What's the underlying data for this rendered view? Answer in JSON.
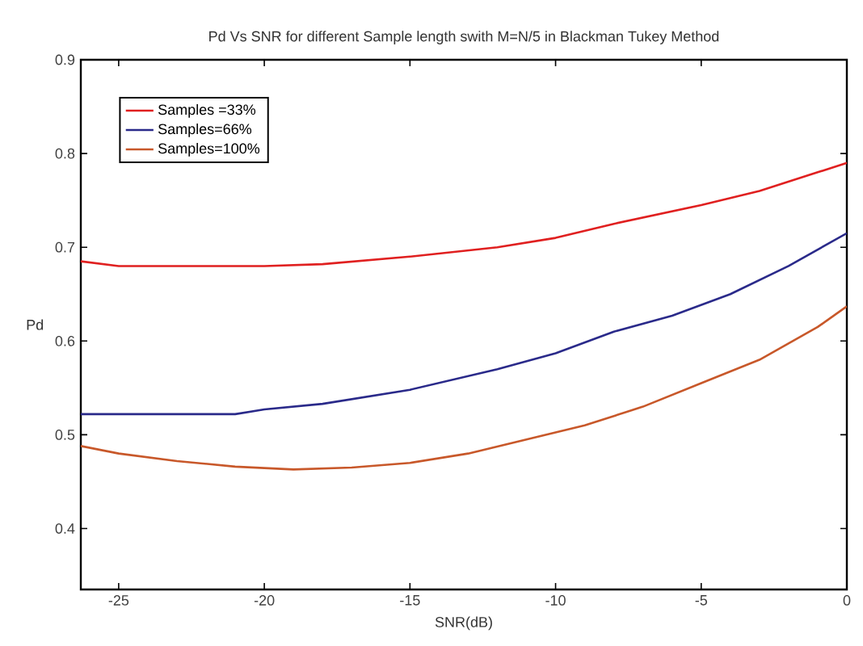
{
  "chart_data": {
    "type": "line",
    "title": "Pd Vs SNR for different Sample length swith M=N/5 in Blackman Tukey Method",
    "xlabel": "SNR(dB)",
    "ylabel": "Pd",
    "xlim": [
      -26.3,
      0
    ],
    "ylim": [
      0.335,
      0.9
    ],
    "xticks": [
      -25,
      -20,
      -15,
      -10,
      -5,
      0
    ],
    "yticks": [
      0.4,
      0.5,
      0.6,
      0.7,
      0.8,
      0.9
    ],
    "legend": "top left",
    "grid": false,
    "line_style": "solid",
    "marker": "none",
    "series": [
      {
        "name": "Samples =33%",
        "color": "#e02020",
        "x": [
          -26.3,
          -25,
          -20,
          -18,
          -15,
          -12,
          -10,
          -8,
          -5,
          -3,
          -1,
          0
        ],
        "values": [
          0.685,
          0.68,
          0.68,
          0.682,
          0.69,
          0.7,
          0.71,
          0.725,
          0.745,
          0.76,
          0.78,
          0.79
        ]
      },
      {
        "name": "Samples=66%",
        "color": "#2a2a8a",
        "x": [
          -26.3,
          -21,
          -20,
          -18,
          -15,
          -12,
          -10,
          -8,
          -6,
          -4,
          -2,
          0
        ],
        "values": [
          0.522,
          0.522,
          0.527,
          0.533,
          0.548,
          0.57,
          0.587,
          0.61,
          0.627,
          0.65,
          0.68,
          0.715
        ]
      },
      {
        "name": "Samples=100%",
        "color": "#c8582a",
        "x": [
          -26.3,
          -25,
          -23,
          -21,
          -19,
          -17,
          -15,
          -13,
          -11,
          -9,
          -7,
          -5,
          -3,
          -1,
          0
        ],
        "values": [
          0.488,
          0.48,
          0.472,
          0.466,
          0.463,
          0.465,
          0.47,
          0.48,
          0.495,
          0.51,
          0.53,
          0.555,
          0.58,
          0.615,
          0.637
        ]
      }
    ]
  }
}
